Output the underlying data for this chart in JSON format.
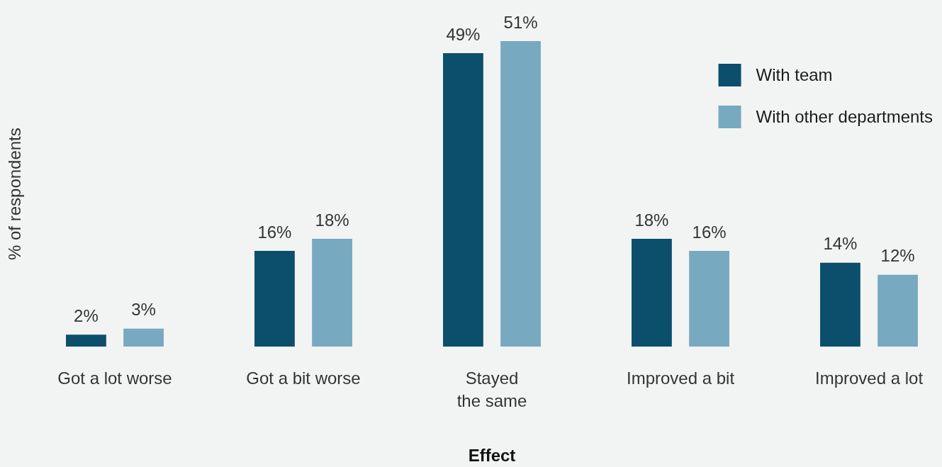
{
  "chart_data": {
    "type": "bar",
    "xlabel": "Effect",
    "ylabel": "% of respondents",
    "legend": "top right",
    "categories": [
      "Got a lot worse",
      "Got a bit worse",
      "Stayed\nthe same",
      "Improved a bit",
      "Improved a lot"
    ],
    "series": [
      {
        "name": "With team",
        "color": "#0b4f6c",
        "values": [
          2,
          16,
          49,
          18,
          14
        ],
        "value_labels": [
          "2%",
          "16%",
          "49%",
          "18%",
          "14%"
        ]
      },
      {
        "name": "With other departments",
        "color": "#77a9c1",
        "values": [
          3,
          18,
          51,
          16,
          12
        ],
        "value_labels": [
          "3%",
          "18%",
          "51%",
          "16%",
          "12%"
        ]
      }
    ]
  }
}
